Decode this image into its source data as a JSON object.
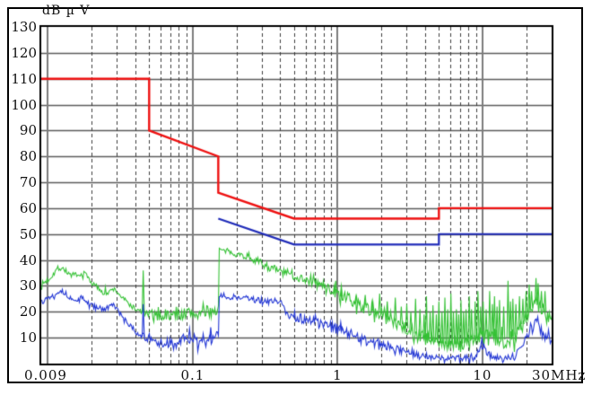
{
  "figure": {
    "background": "#ffffff",
    "border_color": "#000000"
  },
  "chart_data": {
    "type": "line",
    "title": "",
    "xlabel": "",
    "ylabel": "dB µ V",
    "x_axis": {
      "scale": "log",
      "min": 0.009,
      "max": 30,
      "unit": "MHz",
      "ticks": [
        {
          "f": 0.009,
          "label": "0.009",
          "anchor": "left"
        },
        {
          "f": 0.1,
          "label": "0.1",
          "anchor": "center"
        },
        {
          "f": 1,
          "label": "1",
          "anchor": "center"
        },
        {
          "f": 10,
          "label": "10",
          "anchor": "center"
        },
        {
          "f": 30,
          "label": "30MHz",
          "anchor": "right"
        }
      ],
      "major_gridlines": [
        0.01,
        0.1,
        1,
        10
      ],
      "minor_gridlines": [
        0.02,
        0.03,
        0.04,
        0.05,
        0.06,
        0.07,
        0.08,
        0.09,
        0.2,
        0.3,
        0.4,
        0.5,
        0.6,
        0.7,
        0.8,
        0.9,
        2,
        3,
        4,
        5,
        6,
        7,
        8,
        9,
        20
      ]
    },
    "y_axis": {
      "min": 0,
      "max": 130,
      "tick_step": 10,
      "ticks": [
        {
          "v": 130,
          "label": "130"
        },
        {
          "v": 120,
          "label": "120"
        },
        {
          "v": 110,
          "label": "110"
        },
        {
          "v": 100,
          "label": "100"
        },
        {
          "v": 90,
          "label": "90"
        },
        {
          "v": 80,
          "label": "80"
        },
        {
          "v": 70,
          "label": "70"
        },
        {
          "v": 60,
          "label": "60"
        },
        {
          "v": 50,
          "label": "50"
        },
        {
          "v": 40,
          "label": "40"
        },
        {
          "v": 30,
          "label": "30"
        },
        {
          "v": 20,
          "label": "20"
        },
        {
          "v": 10,
          "label": "10"
        }
      ]
    },
    "grid": {
      "horizontal_color": "#5a5a5a",
      "minor_color": "#3c3c3c",
      "major_color": "#7d7d7d",
      "frame_color": "#000000"
    },
    "series": [
      {
        "name": "trace-quasi-peak-green",
        "kind": "noisy",
        "color": "#35c135",
        "seed": 7,
        "envelope": [
          [
            0.009,
            30.5,
            1.2
          ],
          [
            0.01,
            32.5,
            1.5
          ],
          [
            0.0115,
            36.5,
            1.0
          ],
          [
            0.0125,
            37.0,
            1.0
          ],
          [
            0.014,
            34.5,
            1.2
          ],
          [
            0.016,
            33.5,
            1.2
          ],
          [
            0.018,
            35.0,
            1.0
          ],
          [
            0.02,
            31.0,
            1.0
          ],
          [
            0.023,
            28.5,
            1.2
          ],
          [
            0.026,
            27.0,
            1.2
          ],
          [
            0.028,
            29.0,
            1.0
          ],
          [
            0.03,
            27.5,
            1.0
          ],
          [
            0.033,
            25.0,
            1.0
          ],
          [
            0.037,
            22.5,
            1.0
          ],
          [
            0.041,
            20.5,
            1.0
          ],
          [
            0.045,
            20.0,
            1.0
          ],
          [
            0.048,
            19.0,
            1.5
          ],
          [
            0.055,
            18.5,
            2.0
          ],
          [
            0.065,
            18.5,
            2.2
          ],
          [
            0.08,
            19.0,
            2.4
          ],
          [
            0.095,
            19.5,
            2.6
          ],
          [
            0.11,
            19.0,
            2.4
          ],
          [
            0.125,
            20.0,
            2.4
          ],
          [
            0.14,
            20.5,
            2.4
          ],
          [
            0.1495,
            21.0,
            2.0
          ],
          [
            0.1505,
            44.5,
            0.8
          ],
          [
            0.16,
            43.5,
            0.8
          ],
          [
            0.18,
            43.0,
            1.0
          ],
          [
            0.21,
            42.0,
            1.2
          ],
          [
            0.25,
            41.0,
            1.4
          ],
          [
            0.3,
            38.5,
            1.6
          ],
          [
            0.34,
            37.0,
            1.6
          ],
          [
            0.4,
            35.5,
            1.8
          ],
          [
            0.46,
            34.5,
            1.8
          ],
          [
            0.52,
            33.5,
            1.8
          ],
          [
            0.6,
            32.5,
            1.8
          ],
          [
            0.7,
            31.0,
            2.0
          ],
          [
            0.8,
            30.0,
            2.0
          ],
          [
            0.9,
            28.5,
            2.2
          ],
          [
            1.0,
            26.5,
            2.2
          ],
          [
            1.15,
            25.0,
            2.4
          ],
          [
            1.3,
            23.5,
            2.4
          ],
          [
            1.5,
            22.0,
            2.6
          ],
          [
            1.7,
            20.5,
            2.8
          ],
          [
            2.0,
            19.0,
            3.0
          ],
          [
            2.3,
            17.5,
            3.0
          ],
          [
            2.7,
            15.5,
            3.2
          ],
          [
            3.1,
            13.0,
            3.2
          ],
          [
            3.6,
            11.0,
            3.2
          ],
          [
            4.2,
            9.0,
            3.0
          ],
          [
            5.0,
            8.0,
            3.0
          ],
          [
            6.0,
            7.5,
            3.0
          ],
          [
            7.0,
            7.5,
            3.0
          ],
          [
            8.0,
            8.5,
            3.2
          ],
          [
            9.0,
            10.5,
            3.4
          ],
          [
            9.8,
            11.0,
            3.4
          ],
          [
            10.5,
            9.5,
            3.4
          ],
          [
            11.5,
            10.5,
            3.6
          ],
          [
            12.5,
            9.5,
            3.6
          ],
          [
            13.5,
            9.0,
            3.6
          ],
          [
            14.5,
            9.5,
            3.6
          ],
          [
            15.5,
            10.5,
            3.6
          ],
          [
            16.5,
            10.5,
            3.6
          ],
          [
            17.5,
            12.0,
            3.8
          ],
          [
            18.5,
            14.0,
            3.8
          ],
          [
            19.5,
            16.5,
            4.0
          ],
          [
            20.5,
            19.0,
            4.0
          ],
          [
            21.5,
            21.0,
            4.0
          ],
          [
            22.5,
            22.5,
            4.0
          ],
          [
            23.5,
            23.0,
            4.0
          ],
          [
            24.5,
            22.5,
            4.0
          ],
          [
            25.5,
            21.5,
            4.0
          ],
          [
            26.5,
            20.5,
            4.0
          ],
          [
            27.5,
            19.5,
            4.0
          ],
          [
            28.5,
            19.0,
            4.0
          ],
          [
            29.3,
            19.5,
            4.0
          ],
          [
            30,
            20.0,
            4.0
          ]
        ],
        "spikes": [
          [
            0.0455,
            36
          ],
          [
            0.97,
            32
          ],
          [
            1.06,
            30
          ],
          [
            1.35,
            26
          ],
          [
            1.55,
            26.5
          ],
          [
            1.75,
            24
          ],
          [
            1.95,
            27
          ],
          [
            2.2,
            24
          ],
          [
            2.5,
            25.5
          ],
          [
            2.75,
            22
          ],
          [
            3.0,
            23
          ],
          [
            3.2,
            20
          ],
          [
            3.45,
            25
          ],
          [
            3.7,
            21
          ],
          [
            3.95,
            19
          ],
          [
            4.1,
            26
          ],
          [
            4.35,
            20
          ],
          [
            4.55,
            22.5
          ],
          [
            4.8,
            19
          ],
          [
            5.0,
            24
          ],
          [
            5.25,
            20
          ],
          [
            5.5,
            25.5
          ],
          [
            5.75,
            21
          ],
          [
            6.05,
            27
          ],
          [
            6.3,
            20
          ],
          [
            6.6,
            21
          ],
          [
            6.85,
            19
          ],
          [
            7.1,
            24.5
          ],
          [
            7.4,
            20
          ],
          [
            7.7,
            21
          ],
          [
            8.1,
            26
          ],
          [
            8.4,
            21
          ],
          [
            8.9,
            24
          ],
          [
            9.3,
            28
          ],
          [
            9.7,
            22
          ],
          [
            10.1,
            24
          ],
          [
            10.6,
            21
          ],
          [
            11.2,
            28
          ],
          [
            11.7,
            23
          ],
          [
            12.1,
            26
          ],
          [
            12.6,
            22
          ],
          [
            13.1,
            24.5
          ],
          [
            14.0,
            22
          ],
          [
            15.0,
            32
          ],
          [
            15.6,
            24
          ],
          [
            16.2,
            25
          ],
          [
            17.0,
            23
          ],
          [
            18.0,
            26
          ],
          [
            19.0,
            25
          ],
          [
            20.0,
            28
          ],
          [
            21.0,
            30.5
          ],
          [
            21.8,
            28
          ],
          [
            23.4,
            33
          ],
          [
            24.2,
            31
          ],
          [
            25.5,
            28
          ],
          [
            27.0,
            28
          ]
        ]
      },
      {
        "name": "trace-average-blue",
        "kind": "noisy",
        "color": "#2236d4",
        "seed": 13,
        "envelope": [
          [
            0.009,
            24.5,
            1.0
          ],
          [
            0.011,
            26.5,
            1.0
          ],
          [
            0.012,
            28.5,
            1.0
          ],
          [
            0.0135,
            26.5,
            1.0
          ],
          [
            0.015,
            24.0,
            1.0
          ],
          [
            0.017,
            25.5,
            1.0
          ],
          [
            0.019,
            23.0,
            1.0
          ],
          [
            0.022,
            21.5,
            1.0
          ],
          [
            0.025,
            21.0,
            1.0
          ],
          [
            0.028,
            23.0,
            1.0
          ],
          [
            0.031,
            19.5,
            1.0
          ],
          [
            0.034,
            16.5,
            1.0
          ],
          [
            0.038,
            13.5,
            1.0
          ],
          [
            0.042,
            11.5,
            1.0
          ],
          [
            0.047,
            10.0,
            1.4
          ],
          [
            0.055,
            8.0,
            1.6
          ],
          [
            0.065,
            7.5,
            2.0
          ],
          [
            0.08,
            8.5,
            2.4
          ],
          [
            0.095,
            9.5,
            2.6
          ],
          [
            0.11,
            8.5,
            2.4
          ],
          [
            0.125,
            9.0,
            2.6
          ],
          [
            0.14,
            10.0,
            2.6
          ],
          [
            0.1495,
            10.5,
            2.0
          ],
          [
            0.1505,
            26.5,
            1.0
          ],
          [
            0.17,
            26.0,
            1.2
          ],
          [
            0.2,
            25.5,
            1.2
          ],
          [
            0.24,
            25.0,
            1.2
          ],
          [
            0.28,
            24.5,
            1.2
          ],
          [
            0.33,
            24.0,
            1.2
          ],
          [
            0.38,
            23.5,
            1.2
          ],
          [
            0.425,
            23.0,
            1.2
          ],
          [
            0.435,
            19.0,
            1.6
          ],
          [
            0.5,
            18.2,
            2.0
          ],
          [
            0.6,
            17.0,
            2.2
          ],
          [
            0.7,
            16.0,
            2.2
          ],
          [
            0.8,
            15.0,
            2.2
          ],
          [
            0.9,
            14.0,
            2.2
          ],
          [
            1.0,
            13.0,
            2.2
          ],
          [
            1.2,
            11.5,
            2.2
          ],
          [
            1.4,
            10.0,
            2.2
          ],
          [
            1.7,
            8.5,
            2.2
          ],
          [
            2.0,
            7.0,
            2.2
          ],
          [
            2.4,
            5.5,
            2.0
          ],
          [
            2.8,
            4.5,
            1.8
          ],
          [
            3.3,
            3.5,
            1.6
          ],
          [
            4.0,
            2.8,
            1.4
          ],
          [
            5.0,
            2.2,
            1.2
          ],
          [
            6.0,
            2.0,
            1.2
          ],
          [
            7.0,
            2.0,
            1.2
          ],
          [
            8.0,
            2.2,
            1.4
          ],
          [
            8.8,
            3.0,
            1.6
          ],
          [
            9.4,
            5.5,
            1.8
          ],
          [
            9.9,
            7.0,
            1.8
          ],
          [
            10.4,
            5.5,
            1.8
          ],
          [
            11.0,
            3.5,
            1.6
          ],
          [
            12.0,
            2.5,
            1.2
          ],
          [
            13.5,
            2.0,
            1.0
          ],
          [
            15.0,
            2.2,
            1.2
          ],
          [
            16.5,
            3.0,
            1.4
          ],
          [
            17.5,
            4.5,
            1.8
          ],
          [
            18.5,
            7.0,
            2.0
          ],
          [
            19.5,
            9.5,
            2.2
          ],
          [
            20.5,
            11.5,
            2.4
          ],
          [
            21.5,
            13.5,
            2.6
          ],
          [
            22.5,
            15.0,
            2.8
          ],
          [
            23.5,
            16.0,
            2.8
          ],
          [
            24.3,
            15.5,
            2.8
          ],
          [
            25.2,
            13.5,
            2.8
          ],
          [
            26.2,
            11.5,
            2.8
          ],
          [
            27.2,
            9.5,
            2.6
          ],
          [
            28.2,
            8.5,
            2.6
          ],
          [
            29.0,
            10.0,
            2.8
          ],
          [
            30,
            11.5,
            2.8
          ]
        ],
        "spikes": [
          [
            0.0455,
            23
          ],
          [
            0.095,
            13.5
          ],
          [
            0.133,
            14
          ],
          [
            1.05,
            16
          ],
          [
            9.9,
            9.5
          ]
        ]
      },
      {
        "name": "limit-quasi-peak-red",
        "kind": "segments",
        "color": "#ee1111",
        "width": 2.4,
        "points": [
          [
            0.009,
            110
          ],
          [
            0.05,
            110
          ],
          [
            0.05,
            90
          ],
          [
            0.15,
            80
          ],
          [
            0.15,
            66
          ],
          [
            0.5,
            56
          ],
          [
            5,
            56
          ],
          [
            5,
            60
          ],
          [
            30,
            60
          ]
        ]
      },
      {
        "name": "limit-average-blue",
        "kind": "segments",
        "color": "#1f2bb8",
        "width": 2.2,
        "points": [
          [
            0.15,
            56
          ],
          [
            0.5,
            46
          ],
          [
            5,
            46
          ],
          [
            5,
            50
          ],
          [
            30,
            50
          ]
        ]
      }
    ]
  }
}
